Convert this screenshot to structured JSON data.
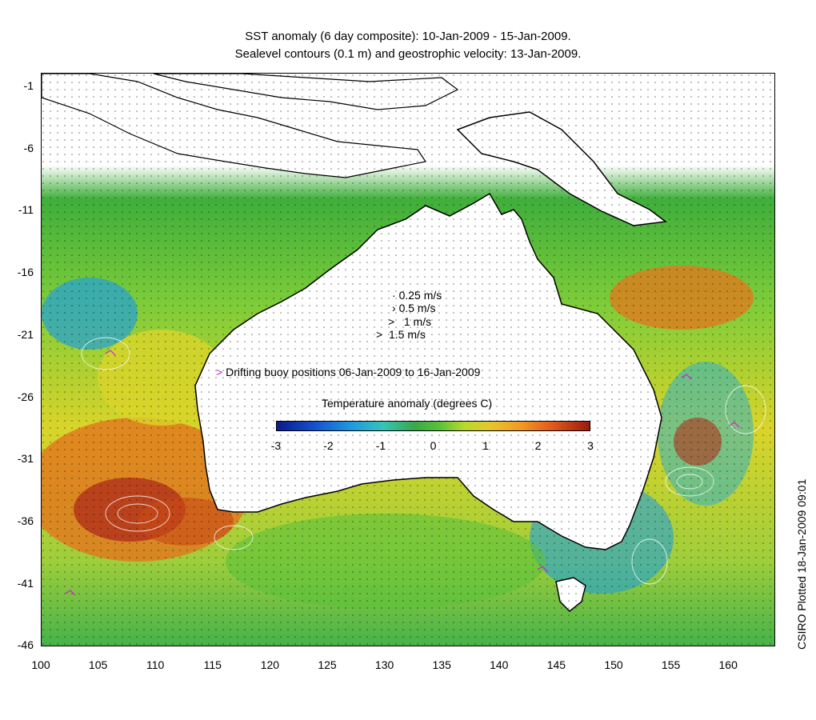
{
  "title_line1": "SST anomaly (6 day composite): 10-Jan-2009 - 15-Jan-2009.",
  "title_line2": "Sealevel contours (0.1 m) and geostrophic velocity: 13-Jan-2009.",
  "lat_ticks": [
    "-1",
    "-6",
    "-11",
    "-16",
    "-21",
    "-26",
    "-31",
    "-36",
    "-41",
    "-46"
  ],
  "lon_ticks": [
    "100",
    "105",
    "110",
    "115",
    "120",
    "125",
    "130",
    "135",
    "140",
    "145",
    "150",
    "155",
    "160"
  ],
  "velocity_key": [
    "0.25 m/s",
    "0.5 m/s",
    "1 m/s",
    "1.5 m/s"
  ],
  "buoy_label": "Drifting buoy positions 06-Jan-2009 to 16-Jan-2009",
  "colorbar_title": "Temperature anomaly (degrees C)",
  "colorbar_ticks": [
    "-3",
    "-2",
    "-1",
    "0",
    "1",
    "2",
    "3"
  ],
  "side_note": "CSIRO Plotted 18-Jan-2009 09:01",
  "colors": {
    "land": "#ffffff",
    "warm_anomaly": "#e0701c",
    "hot_anomaly": "#b0301a",
    "neutral": "#7ccc3a",
    "cool_anomaly": "#22a0d8",
    "buoy": "#d020d0",
    "sealevel_contour": "#ffffff",
    "coast": "#000000"
  },
  "map_extent": {
    "lon": [
      100,
      164
    ],
    "lat": [
      -46,
      0
    ]
  }
}
